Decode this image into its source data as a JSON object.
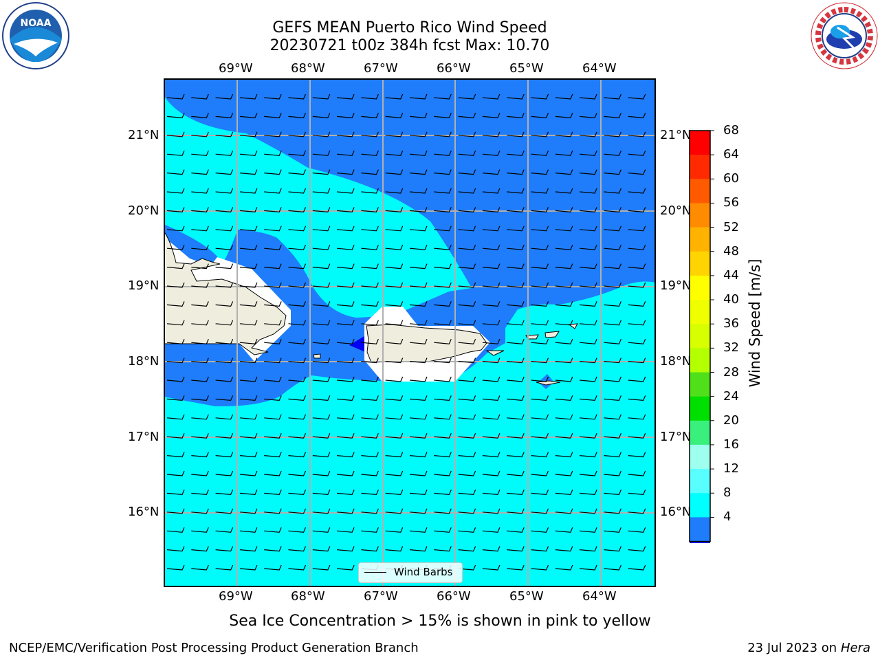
{
  "header": {
    "title_line1": "GEFS MEAN Puerto Rico Wind Speed",
    "title_line2": "20230721 t00z 384h fcst   Max: 10.70"
  },
  "map": {
    "lon_labels": [
      "69°W",
      "68°W",
      "67°W",
      "66°W",
      "65°W",
      "64°W"
    ],
    "lat_labels": [
      "21°N",
      "20°N",
      "19°N",
      "18°N",
      "17°N",
      "16°N"
    ],
    "legend_label": "Wind Barbs",
    "colors": {
      "land": "#efedde",
      "band_4_8": "#1f7dfb",
      "band_8_12": "#00fbfb",
      "band_lt_4": "#0000f3"
    }
  },
  "colorbar": {
    "title": "Wind Speed [m/s]",
    "ticks": [
      "68",
      "64",
      "60",
      "56",
      "52",
      "48",
      "44",
      "40",
      "36",
      "32",
      "28",
      "24",
      "20",
      "16",
      "12",
      "8",
      "4"
    ],
    "colors": [
      "#ff0000",
      "#ff2a00",
      "#ff5a00",
      "#ff8c00",
      "#ffb300",
      "#ffd400",
      "#ffff00",
      "#f0ff00",
      "#d8ff00",
      "#b4ff00",
      "#50e01a",
      "#00e000",
      "#39f07d",
      "#9effef",
      "#59ffff",
      "#00ffff",
      "#1f7dfb"
    ],
    "under_color": "#0000f3"
  },
  "caption": "Sea Ice Concentration > 15% is shown in pink to yellow",
  "footer": {
    "left": "NCEP/EMC/Verification Post Processing Product Generation Branch",
    "right_prefix": "23 Jul 2023 on ",
    "right_host": "Hera"
  },
  "logos": {
    "noaa_text": "NOAA",
    "nws_text": "NATIONAL WEATHER SERVICE"
  }
}
